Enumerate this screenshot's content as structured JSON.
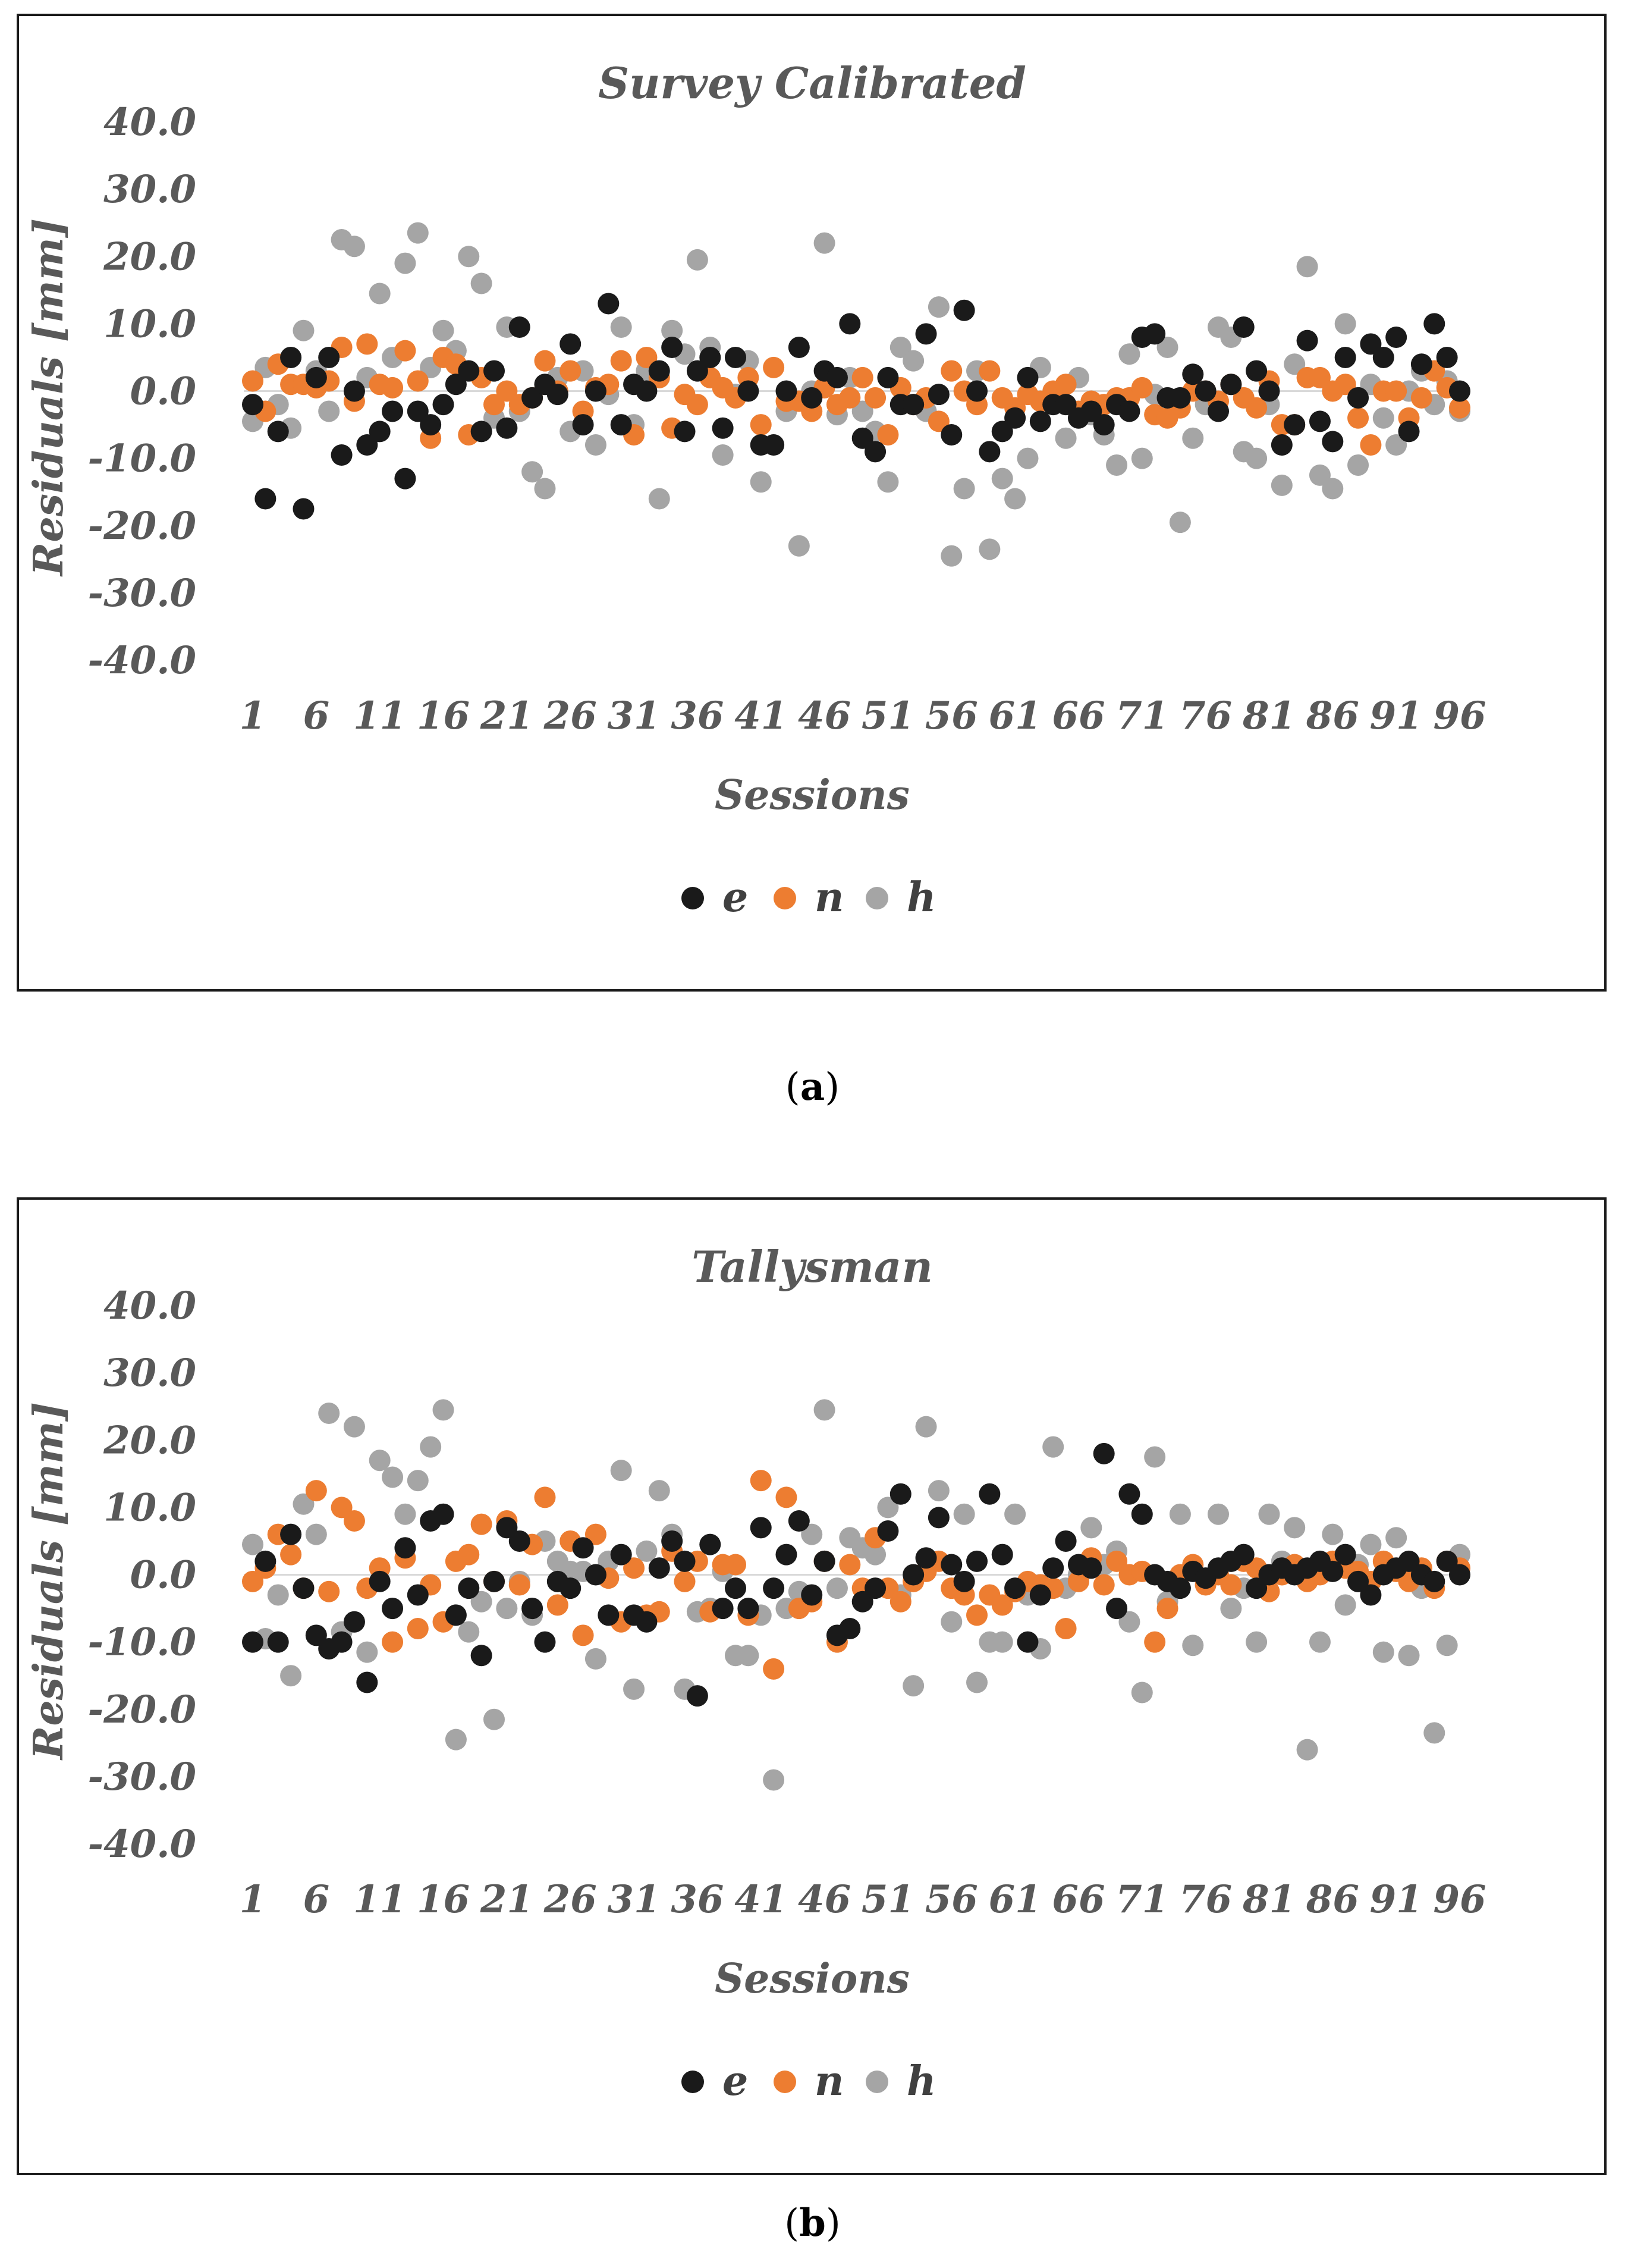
{
  "colors": {
    "e": "#1a1a1a",
    "n": "#ed7d31",
    "h": "#a5a5a5"
  },
  "chart_data": [
    {
      "type": "scatter",
      "panel_label": "a",
      "title": "Survey Calibrated",
      "xlabel": "Sessions",
      "ylabel": "Residuals [mm]",
      "ylim": [
        -40,
        40
      ],
      "yticks": [
        "40.0",
        "30.0",
        "20.0",
        "10.0",
        "0.0",
        "-10.0",
        "-20.0",
        "-30.0",
        "-40.0"
      ],
      "xticks": [
        "1",
        "6",
        "11",
        "16",
        "21",
        "26",
        "31",
        "36",
        "41",
        "46",
        "51",
        "56",
        "61",
        "66",
        "71",
        "76",
        "81",
        "86",
        "91",
        "96"
      ],
      "legend": [
        "e",
        "n",
        "h"
      ],
      "series": [
        {
          "name": "e",
          "values": [
            -2,
            -16,
            -6,
            5,
            -17.5,
            2,
            5,
            -9.5,
            0,
            -8,
            -6,
            -3,
            -13,
            -3,
            -5,
            -2,
            1,
            3,
            -6,
            3,
            -5.5,
            9.5,
            -1,
            1,
            -0.5,
            7,
            -5,
            0,
            13,
            -5,
            1,
            0,
            3,
            6.5,
            -6,
            3,
            5,
            -5.5,
            5,
            0,
            -8,
            -8,
            0,
            6.5,
            -1,
            3,
            2,
            10,
            -7,
            -9,
            2,
            -2,
            -2,
            8.5,
            -0.5,
            -6.5,
            12,
            0,
            -9,
            -6,
            -4,
            2,
            -4.5,
            -2,
            -2,
            -4,
            -3,
            -5,
            -2,
            -3,
            8,
            8.5,
            -1,
            -1,
            2.5,
            0,
            -3,
            1,
            9.5,
            3,
            0,
            -8,
            -5,
            7.5,
            -4.5,
            -7.5,
            5,
            -1,
            7,
            5,
            8,
            -6,
            4,
            10,
            5,
            0
          ]
        },
        {
          "name": "n",
          "values": [
            1.5,
            -3,
            4,
            1,
            1,
            0.5,
            1.5,
            6.5,
            -1.5,
            7,
            1,
            0.5,
            6,
            1.5,
            -7,
            5,
            4,
            -6.5,
            2,
            -2,
            0,
            -2,
            -1,
            4.5,
            0,
            3,
            -3,
            0.5,
            1,
            4.5,
            -6.5,
            5,
            2,
            -5.5,
            -0.5,
            -2,
            2,
            0.5,
            -1,
            2,
            -5,
            3.5,
            -1.5,
            -1.5,
            -3,
            0.5,
            -2,
            -1,
            2,
            -1,
            -6.5,
            0.5,
            -2,
            -1,
            -4.5,
            3,
            0,
            -2,
            3,
            -1,
            -2.5,
            -0.5,
            -1.5,
            0,
            1,
            -3,
            -1.5,
            -2,
            -1,
            -1,
            0.5,
            -3.5,
            -4,
            -2.5,
            0,
            0,
            -1.5,
            1,
            -1,
            -2.5,
            1.5,
            -5,
            -5,
            2,
            2,
            0,
            1,
            -4,
            -8,
            0,
            0,
            -4,
            -1,
            3,
            0.5,
            -2.5
          ]
        },
        {
          "name": "h",
          "values": [
            -4.5,
            3.5,
            -2,
            -5.5,
            9,
            3,
            -3,
            22.5,
            21.5,
            2,
            14.5,
            5,
            19,
            23.5,
            3.5,
            9,
            6,
            20,
            16,
            -4,
            9.5,
            -3,
            -12,
            -14.5,
            2,
            -6,
            3,
            -8,
            -0.5,
            9.5,
            -5,
            3,
            -16,
            9,
            5.5,
            19.5,
            6.5,
            -9.5,
            -0.5,
            4.5,
            -13.5,
            -8,
            -3,
            -23,
            0,
            22,
            -3.5,
            2,
            -3,
            -6,
            -13.5,
            6.5,
            4.5,
            -3,
            12.5,
            -24.5,
            -14.5,
            3,
            -23.5,
            -13,
            -16,
            -10,
            3.5,
            -1,
            -7,
            2,
            -3.5,
            -6.5,
            -11,
            5.5,
            -10,
            -0.5,
            6.5,
            -19.5,
            -7,
            -2,
            9.5,
            8,
            -9,
            -10,
            -2,
            -14,
            4,
            18.5,
            -12.5,
            -14.5,
            10,
            -11,
            1,
            -4,
            -8,
            0,
            3,
            -2,
            1.5,
            -3
          ]
        }
      ]
    },
    {
      "type": "scatter",
      "panel_label": "b",
      "title": "Tallysman",
      "xlabel": "Sessions",
      "ylabel": "Residuals [mm]",
      "ylim": [
        -40,
        40
      ],
      "yticks": [
        "40.0",
        "30.0",
        "20.0",
        "10.0",
        "0.0",
        "-10.0",
        "-20.0",
        "-30.0",
        "-40.0"
      ],
      "xticks": [
        "1",
        "6",
        "11",
        "16",
        "21",
        "26",
        "31",
        "36",
        "41",
        "46",
        "51",
        "56",
        "61",
        "66",
        "71",
        "76",
        "81",
        "86",
        "91",
        "96"
      ],
      "legend": [
        "e",
        "n",
        "h"
      ],
      "series": [
        {
          "name": "e",
          "values": [
            -10,
            2,
            -10,
            6,
            -2,
            -9,
            -11,
            -10,
            -7,
            -16,
            -1,
            -5,
            4,
            -3,
            8,
            9,
            -6,
            -2,
            -12,
            -1,
            7,
            5,
            -5,
            -10,
            -1,
            -2,
            4,
            0,
            -6,
            3,
            -6,
            -7,
            1,
            5,
            2,
            -18,
            4.5,
            -5,
            -2,
            -5,
            7,
            -2,
            3,
            8,
            -3,
            2,
            -9,
            -8,
            -4,
            -2,
            6.5,
            12,
            0,
            2.5,
            8.5,
            1.5,
            -1,
            2,
            12,
            3,
            -2,
            -10,
            -3,
            1,
            5,
            1.5,
            1,
            18,
            -5,
            12,
            9,
            0,
            -1,
            -2,
            0.5,
            -0.5,
            1,
            2,
            3,
            -2,
            0,
            1,
            0,
            1,
            2,
            0.5,
            3,
            -1,
            -3,
            0,
            1,
            2,
            0,
            -1,
            2,
            0
          ]
        },
        {
          "name": "n",
          "values": [
            -1,
            1,
            6,
            3,
            -2,
            12.5,
            -2.5,
            10,
            8,
            -2,
            1,
            -10,
            2.5,
            -8,
            -1.5,
            -7,
            2,
            3,
            7.5,
            -1,
            8,
            -1.5,
            4.5,
            11.5,
            -4.5,
            5,
            -9,
            6,
            -0.5,
            -7,
            1,
            -6,
            -5.5,
            3.5,
            -1,
            2,
            -5.5,
            1.5,
            1.5,
            -6,
            14,
            -14,
            11.5,
            -5,
            -4,
            2,
            -10,
            1.5,
            -2,
            5.5,
            -2,
            -4,
            -1,
            0.5,
            2,
            -2,
            -3,
            -6,
            -3,
            -4.5,
            -2.5,
            -1,
            -1.5,
            -2,
            -8,
            -1,
            2.5,
            -1.5,
            2,
            0,
            0.5,
            -10,
            -5,
            0,
            1.5,
            -1.5,
            0,
            -1.5,
            2,
            1,
            -2.5,
            0,
            1.5,
            -1,
            0,
            2,
            1,
            0.5,
            -1,
            2,
            0.5,
            -1,
            1,
            -2,
            2,
            1
          ]
        },
        {
          "name": "h",
          "values": [
            4.5,
            -9.5,
            -3,
            -15,
            10.5,
            6,
            24,
            -8.5,
            22,
            -11.5,
            17,
            14.5,
            9,
            14,
            19,
            24.5,
            -24.5,
            -8.5,
            -4,
            -21.5,
            -5,
            -1,
            -6,
            5,
            2,
            0.5,
            0.5,
            -12.5,
            2,
            15.5,
            -17,
            3.5,
            12.5,
            6,
            -17,
            -5.5,
            -5,
            0.5,
            -12,
            -12,
            -6,
            -30.5,
            -5,
            -2.5,
            6,
            24.5,
            -2,
            5.5,
            4,
            3,
            10,
            -3,
            -16.5,
            22,
            12.5,
            -7,
            9,
            -16,
            -10,
            -10,
            9,
            -3,
            -11,
            19,
            -2,
            0,
            7,
            1.5,
            3.5,
            -7,
            -17.5,
            17.5,
            -4,
            9,
            -10.5,
            -1,
            9,
            -5,
            -2,
            -10,
            9,
            2,
            7,
            -26,
            -10,
            6,
            -4.5,
            1.5,
            4.5,
            -11.5,
            5.5,
            -12,
            -2,
            -23.5,
            -10.5,
            3
          ]
        }
      ]
    }
  ]
}
